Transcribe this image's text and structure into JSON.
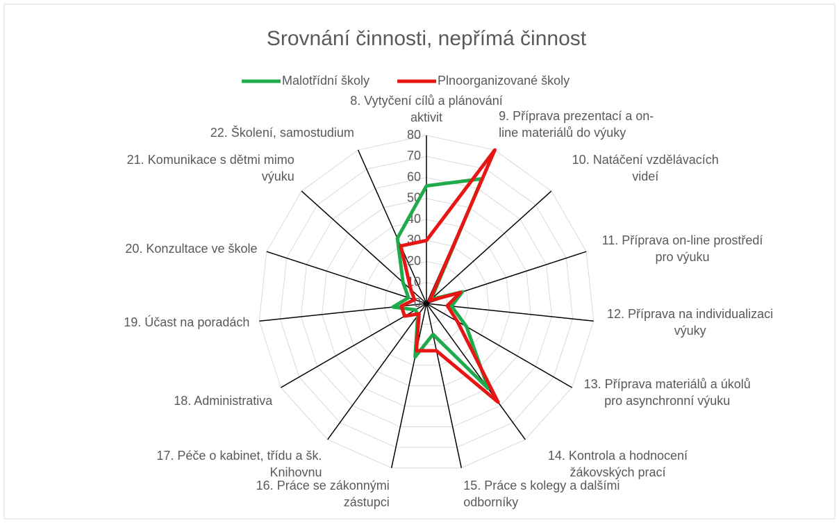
{
  "chart_data": {
    "type": "radar",
    "title": "Srovnání činnosti, nepřímá činnost",
    "categories": [
      "8. Vytyčení cílů a plánování aktivit",
      "9. Příprava prezentací a on-line materiálů do výuky",
      "10. Natáčení vzdělávacích videí",
      "11. Příprava on-line prostředí pro výuku",
      "12. Příprava na individualizaci výuky",
      "13. Příprava materiálů a úkolů pro asynchronní výuku",
      "14. Kontrola a hodnocení žákovských prací",
      "15. Práce s kolegy a dalšími odborníky",
      "16. Práce se zákonnými zástupci",
      "17. Péče o kabinet, třídu a šk. Knihovnu",
      "18. Administrativa",
      "19. Účast na poradách",
      "20. Konzultace ve škole",
      "21. Komunikace s dětmi mimo výuku",
      "22. Školení, samostudium"
    ],
    "series": [
      {
        "name": "Malotřídní školy",
        "color": "#1faa4b",
        "values": [
          56,
          65,
          3,
          18,
          12,
          22,
          50,
          15,
          26,
          7,
          6,
          16,
          9,
          15,
          34
        ]
      },
      {
        "name": "Plnoorganizované školy",
        "color": "#e81515",
        "values": [
          30,
          80,
          2,
          17,
          10,
          17,
          58,
          23,
          23,
          6,
          12,
          12,
          6,
          10,
          30
        ]
      }
    ],
    "ylim": [
      0,
      80
    ],
    "yticks": [
      0,
      10,
      20,
      30,
      40,
      50,
      60,
      70,
      80
    ],
    "grid": true,
    "legend": "top"
  }
}
